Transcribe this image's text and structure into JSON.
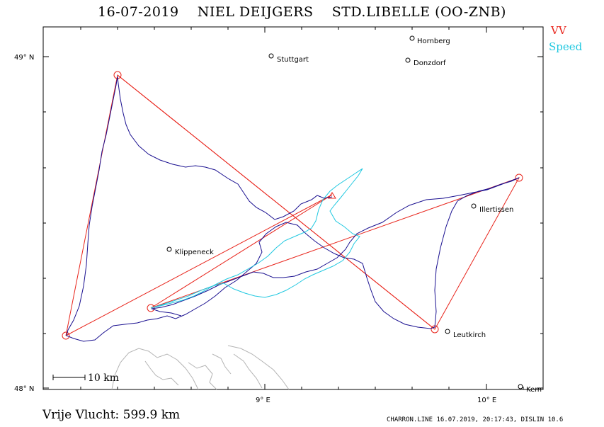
{
  "header": {
    "date": "16-07-2019",
    "pilot": "NIEL DEIJGERS",
    "glider": "STD.LIBELLE (OO-ZNB)"
  },
  "legend": {
    "items": [
      {
        "label": "VV",
        "color": "#e8241b"
      },
      {
        "label": "Speed",
        "color": "#20c8e0"
      }
    ]
  },
  "axes": {
    "lat_labels": [
      "49° N",
      "48° N"
    ],
    "lon_labels": [
      "9° E",
      "10° E"
    ]
  },
  "towns": [
    "Hornberg",
    "Stuttgart",
    "Donzdorf",
    "Illertissen",
    "Klippeneck",
    "Leutkirch",
    "Kem"
  ],
  "scale": {
    "label": "10 km"
  },
  "footer": {
    "distance": "Vrije Vlucht:  599.9 km",
    "credit": "CHARRON.LINE 16.07.2019, 20:17:43, DISLIN 10.6"
  },
  "colors": {
    "track": "#1a1090",
    "task": "#e8241b",
    "speed": "#20c8e0",
    "lake": "#b4b4b4"
  }
}
